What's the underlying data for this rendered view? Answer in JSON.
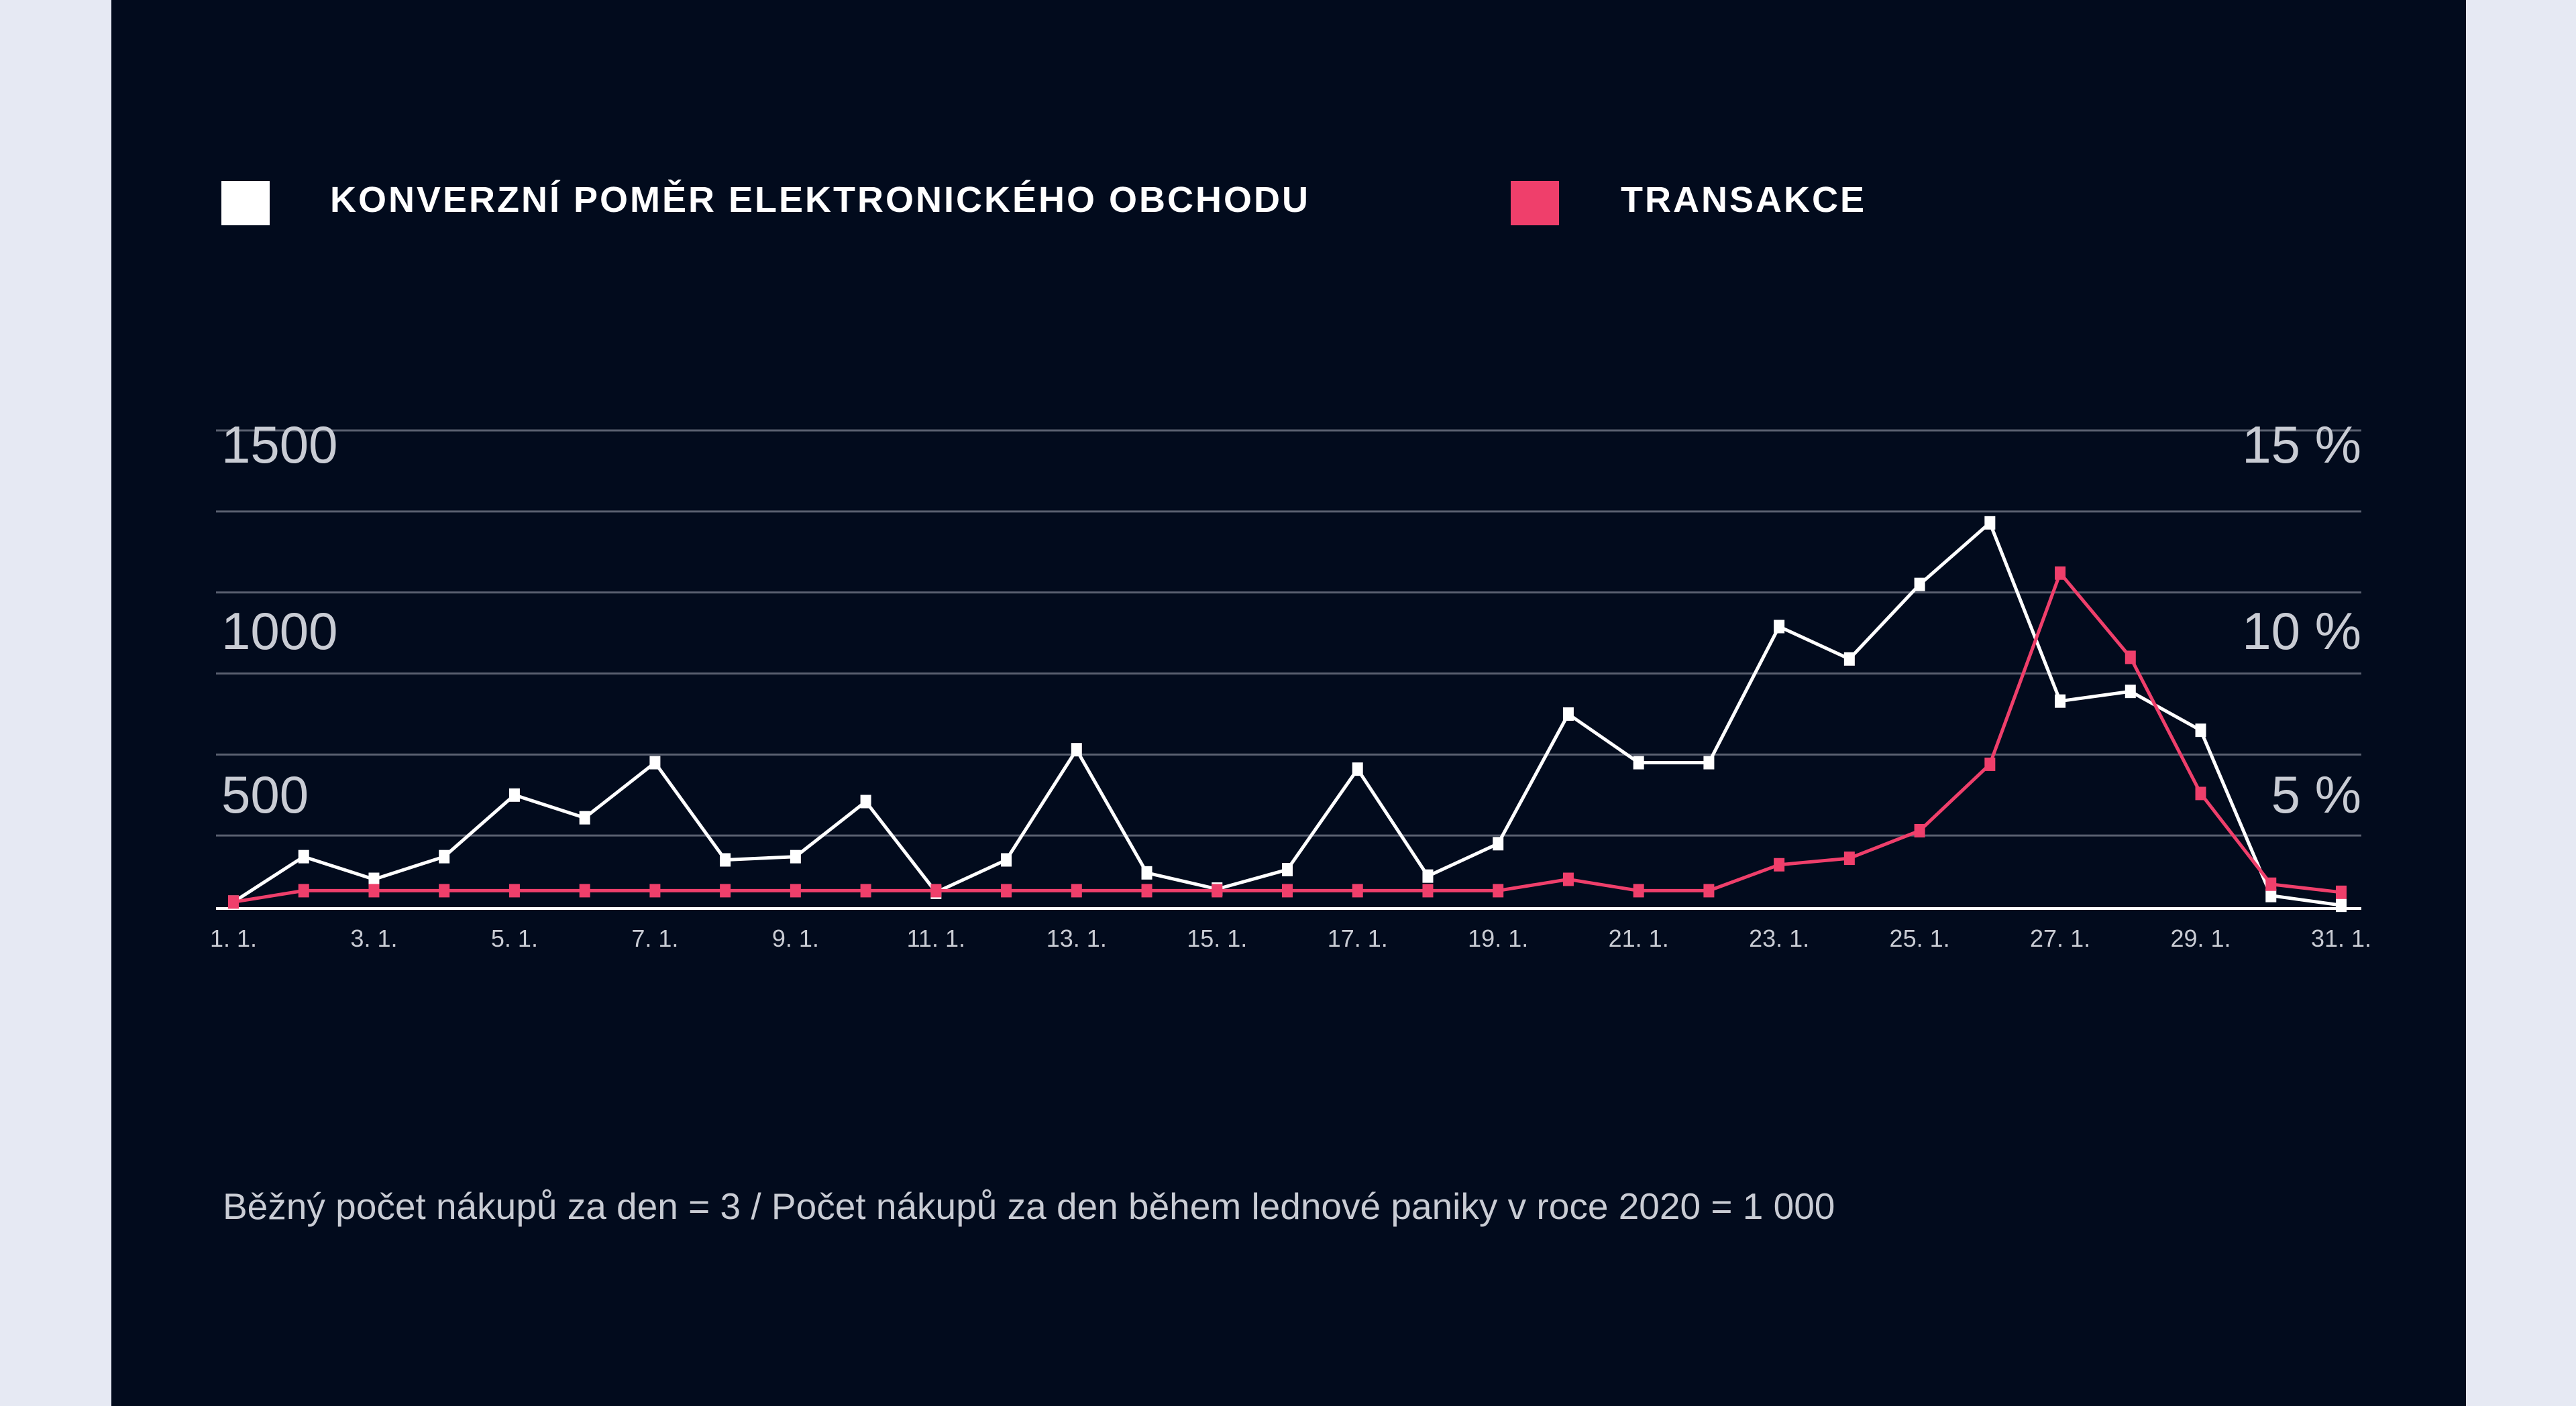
{
  "colors": {
    "background": "#020b1d",
    "page_margin": "#e6e9f3",
    "conversion_series": "#ffffff",
    "transactions_series": "#ef3f6b",
    "gridline": "#5a6070",
    "label": "#c9ccd4"
  },
  "chart_data": {
    "type": "line",
    "legend_position": "top",
    "grid": true,
    "x": [
      "1. 1.",
      "2. 1.",
      "3. 1.",
      "4. 1.",
      "5. 1.",
      "6. 1.",
      "7. 1.",
      "8. 1.",
      "9. 1.",
      "10. 1.",
      "11. 1.",
      "12. 1.",
      "13. 1.",
      "14. 1.",
      "15. 1.",
      "16. 1.",
      "17. 1.",
      "18. 1.",
      "19. 1.",
      "20. 1.",
      "21. 1.",
      "22. 1.",
      "23. 1.",
      "24. 1.",
      "25. 1.",
      "26. 1.",
      "27. 1.",
      "28. 1.",
      "29. 1.",
      "30. 1.",
      "31. 1."
    ],
    "x_tick_labels": [
      "1. 1.",
      "3. 1.",
      "5. 1.",
      "7. 1.",
      "9. 1.",
      "11. 1.",
      "13. 1.",
      "15. 1.",
      "17. 1.",
      "19. 1.",
      "21. 1.",
      "23. 1.",
      "25. 1.",
      "27. 1.",
      "29. 1.",
      "31. 1."
    ],
    "y_left": {
      "ticks": [
        "1500",
        "1000",
        "500"
      ],
      "tick_values": [
        1500,
        1000,
        500
      ],
      "range": [
        0,
        1500
      ]
    },
    "y_right": {
      "ticks": [
        "15 %",
        "10 %",
        "5 %"
      ],
      "tick_values": [
        15,
        10,
        5
      ],
      "range": [
        0,
        15
      ]
    },
    "series": [
      {
        "name": "KONVERZNÍ POMĚR ELEKTRONICKÉHO OBCHODU",
        "axis": "right",
        "color": "#ffffff",
        "values": [
          0.2,
          1.6,
          0.9,
          1.6,
          3.5,
          2.8,
          4.5,
          1.5,
          1.6,
          3.3,
          0.5,
          1.5,
          4.9,
          1.1,
          0.6,
          1.2,
          4.3,
          1.0,
          2.0,
          6.0,
          4.5,
          4.5,
          8.7,
          7.7,
          10.0,
          11.9,
          6.4,
          6.7,
          5.5,
          0.4,
          0.1
        ]
      },
      {
        "name": "TRANSAKCE",
        "axis": "left",
        "color": "#ef3f6b",
        "values": [
          20,
          55,
          55,
          55,
          55,
          55,
          55,
          55,
          55,
          55,
          55,
          55,
          55,
          55,
          55,
          55,
          55,
          55,
          55,
          90,
          55,
          55,
          135,
          155,
          240,
          445,
          1035,
          775,
          355,
          75,
          50
        ]
      }
    ],
    "note": "Běžný počet nákupů za den = 3 / Počet nákupů za den během lednové paniky v roce 2020 = 1 000"
  }
}
